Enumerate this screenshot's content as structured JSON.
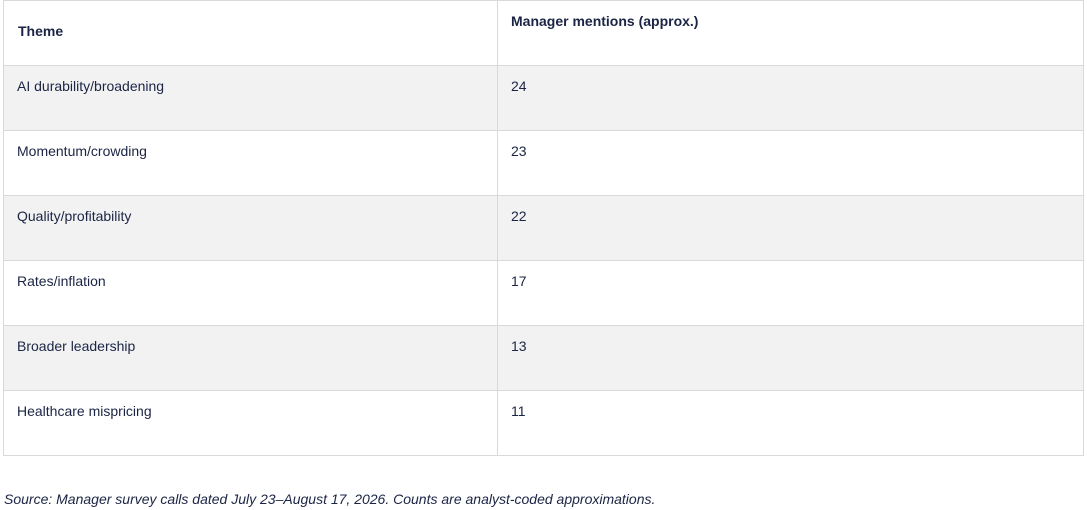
{
  "table": {
    "headers": [
      "Theme",
      "Manager mentions (approx.)"
    ],
    "rows": [
      {
        "theme": "AI durability/broadening",
        "mentions": "24"
      },
      {
        "theme": "Momentum/crowding",
        "mentions": "23"
      },
      {
        "theme": "Quality/profitability",
        "mentions": "22"
      },
      {
        "theme": "Rates/inflation",
        "mentions": "17"
      },
      {
        "theme": "Broader leadership",
        "mentions": "13"
      },
      {
        "theme": "Healthcare mispricing",
        "mentions": "11"
      }
    ]
  },
  "source_note": "Source: Manager survey calls dated July 23–August 17, 2026. Counts are analyst-coded approximations."
}
